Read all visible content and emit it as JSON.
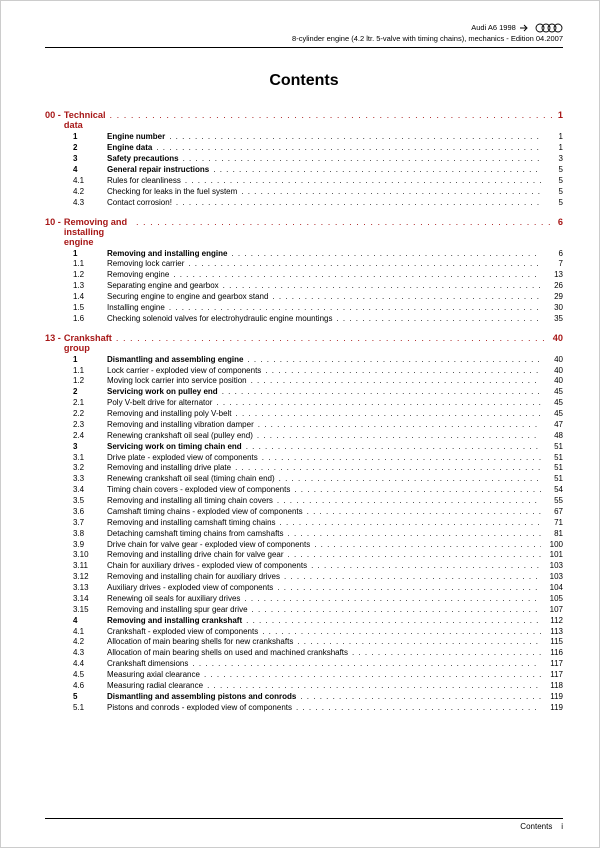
{
  "header": {
    "line1": "Audi A6 1998",
    "line2": "8-cylinder engine (4.2 ltr. 5-valve with timing chains), mechanics - Edition 04.2007",
    "brand": "Audi"
  },
  "title": "Contents",
  "sections": [
    {
      "num": "00 -",
      "title": "Technical data",
      "page": "1",
      "entries": [
        {
          "lvl": 1,
          "num": "1",
          "txt": "Engine number",
          "pg": "1"
        },
        {
          "lvl": 1,
          "num": "2",
          "txt": "Engine data",
          "pg": "1"
        },
        {
          "lvl": 1,
          "num": "3",
          "txt": "Safety precautions",
          "pg": "3"
        },
        {
          "lvl": 1,
          "num": "4",
          "txt": "General repair instructions",
          "pg": "5"
        },
        {
          "lvl": 2,
          "num": "4.1",
          "txt": "Rules for cleanliness",
          "pg": "5"
        },
        {
          "lvl": 2,
          "num": "4.2",
          "txt": "Checking for leaks in the fuel system",
          "pg": "5"
        },
        {
          "lvl": 2,
          "num": "4.3",
          "txt": "Contact corrosion!",
          "pg": "5"
        }
      ]
    },
    {
      "num": "10 -",
      "title": "Removing and installing engine",
      "page": "6",
      "entries": [
        {
          "lvl": 1,
          "num": "1",
          "txt": "Removing and installing engine",
          "pg": "6"
        },
        {
          "lvl": 2,
          "num": "1.1",
          "txt": "Removing lock carrier",
          "pg": "7"
        },
        {
          "lvl": 2,
          "num": "1.2",
          "txt": "Removing engine",
          "pg": "13"
        },
        {
          "lvl": 2,
          "num": "1.3",
          "txt": "Separating engine and gearbox",
          "pg": "26"
        },
        {
          "lvl": 2,
          "num": "1.4",
          "txt": "Securing engine to engine and gearbox stand",
          "pg": "29"
        },
        {
          "lvl": 2,
          "num": "1.5",
          "txt": "Installing engine",
          "pg": "30"
        },
        {
          "lvl": 2,
          "num": "1.6",
          "txt": "Checking solenoid valves for electrohydraulic engine mountings",
          "pg": "35"
        }
      ]
    },
    {
      "num": "13 -",
      "title": "Crankshaft group",
      "page": "40",
      "entries": [
        {
          "lvl": 1,
          "num": "1",
          "txt": "Dismantling and assembling engine",
          "pg": "40"
        },
        {
          "lvl": 2,
          "num": "1.1",
          "txt": "Lock carrier - exploded view of components",
          "pg": "40"
        },
        {
          "lvl": 2,
          "num": "1.2",
          "txt": "Moving lock carrier into service position",
          "pg": "40"
        },
        {
          "lvl": 1,
          "num": "2",
          "txt": "Servicing work on pulley end",
          "pg": "45"
        },
        {
          "lvl": 2,
          "num": "2.1",
          "txt": "Poly V-belt drive for alternator",
          "pg": "45"
        },
        {
          "lvl": 2,
          "num": "2.2",
          "txt": "Removing and installing poly V-belt",
          "pg": "45"
        },
        {
          "lvl": 2,
          "num": "2.3",
          "txt": "Removing and installing vibration damper",
          "pg": "47"
        },
        {
          "lvl": 2,
          "num": "2.4",
          "txt": "Renewing crankshaft oil seal (pulley end)",
          "pg": "48"
        },
        {
          "lvl": 1,
          "num": "3",
          "txt": "Servicing work on timing chain end",
          "pg": "51"
        },
        {
          "lvl": 2,
          "num": "3.1",
          "txt": "Drive plate - exploded view of components",
          "pg": "51"
        },
        {
          "lvl": 2,
          "num": "3.2",
          "txt": "Removing and installing drive plate",
          "pg": "51"
        },
        {
          "lvl": 2,
          "num": "3.3",
          "txt": "Renewing crankshaft oil seal (timing chain end)",
          "pg": "51"
        },
        {
          "lvl": 2,
          "num": "3.4",
          "txt": "Timing chain covers - exploded view of components",
          "pg": "54"
        },
        {
          "lvl": 2,
          "num": "3.5",
          "txt": "Removing and installing all timing chain covers",
          "pg": "55"
        },
        {
          "lvl": 2,
          "num": "3.6",
          "txt": "Camshaft timing chains - exploded view of components",
          "pg": "67"
        },
        {
          "lvl": 2,
          "num": "3.7",
          "txt": "Removing and installing camshaft timing chains",
          "pg": "71"
        },
        {
          "lvl": 2,
          "num": "3.8",
          "txt": "Detaching camshaft timing chains from camshafts",
          "pg": "81"
        },
        {
          "lvl": 2,
          "num": "3.9",
          "txt": "Drive chain for valve gear - exploded view of components",
          "pg": "100"
        },
        {
          "lvl": 2,
          "num": "3.10",
          "txt": "Removing and installing drive chain for valve gear",
          "pg": "101"
        },
        {
          "lvl": 2,
          "num": "3.11",
          "txt": "Chain for auxiliary drives - exploded view of components",
          "pg": "103"
        },
        {
          "lvl": 2,
          "num": "3.12",
          "txt": "Removing and installing chain for auxiliary drives",
          "pg": "103"
        },
        {
          "lvl": 2,
          "num": "3.13",
          "txt": "Auxiliary drives - exploded view of components",
          "pg": "104"
        },
        {
          "lvl": 2,
          "num": "3.14",
          "txt": "Renewing oil seals for auxiliary drives",
          "pg": "105"
        },
        {
          "lvl": 2,
          "num": "3.15",
          "txt": "Removing and installing spur gear drive",
          "pg": "107"
        },
        {
          "lvl": 1,
          "num": "4",
          "txt": "Removing and installing crankshaft",
          "pg": "112"
        },
        {
          "lvl": 2,
          "num": "4.1",
          "txt": "Crankshaft - exploded view of components",
          "pg": "113"
        },
        {
          "lvl": 2,
          "num": "4.2",
          "txt": "Allocation of main bearing shells for new crankshafts",
          "pg": "115"
        },
        {
          "lvl": 2,
          "num": "4.3",
          "txt": "Allocation of main bearing shells on used and machined crankshafts",
          "pg": "116"
        },
        {
          "lvl": 2,
          "num": "4.4",
          "txt": "Crankshaft dimensions",
          "pg": "117"
        },
        {
          "lvl": 2,
          "num": "4.5",
          "txt": "Measuring axial clearance",
          "pg": "117"
        },
        {
          "lvl": 2,
          "num": "4.6",
          "txt": "Measuring radial clearance",
          "pg": "118"
        },
        {
          "lvl": 1,
          "num": "5",
          "txt": "Dismantling and assembling pistons and conrods",
          "pg": "119"
        },
        {
          "lvl": 2,
          "num": "5.1",
          "txt": "Pistons and conrods - exploded view of components",
          "pg": "119"
        }
      ]
    }
  ],
  "footer": {
    "label": "Contents",
    "pagenum": "i"
  },
  "style": {
    "section_color": "#a71818",
    "text_color": "#000000",
    "bg": "#ffffff"
  }
}
